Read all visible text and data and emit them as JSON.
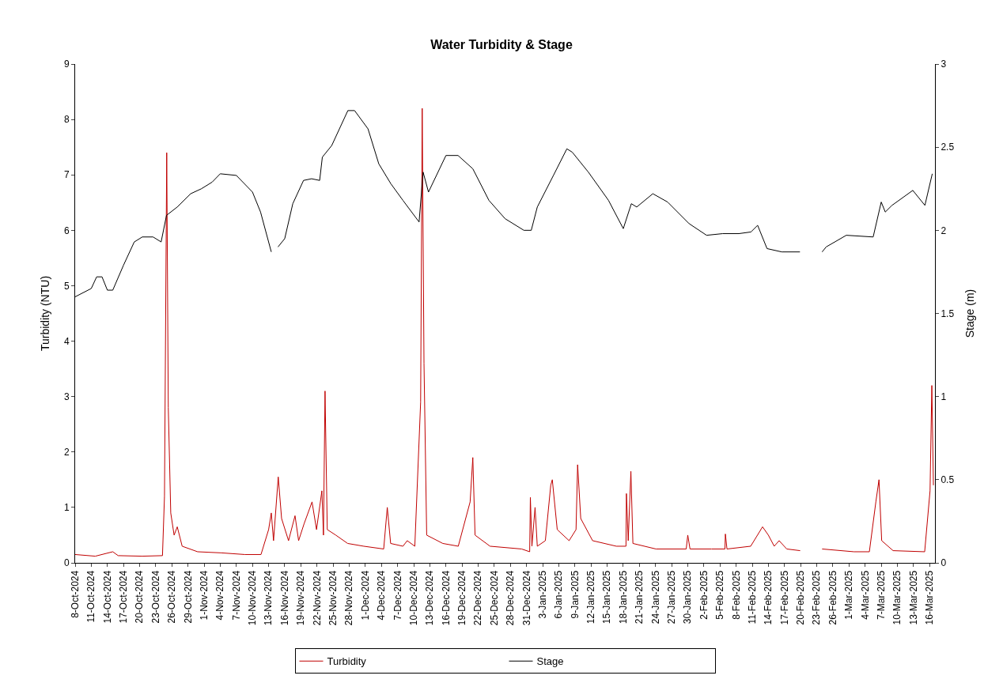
{
  "chart_data": {
    "type": "line",
    "title": "Water Turbidity & Stage",
    "ylabel": "Turbidity (NTU)",
    "y2label": "Stage (m)",
    "xlim": [
      "2024-10-08",
      "2025-03-17"
    ],
    "xticks": [
      {
        "value": "2024-10-08",
        "label": "8-Oct-2024"
      },
      {
        "value": "2024-10-11",
        "label": "11-Oct-2024"
      },
      {
        "value": "2024-10-14",
        "label": "14-Oct-2024"
      },
      {
        "value": "2024-10-17",
        "label": "17-Oct-2024"
      },
      {
        "value": "2024-10-20",
        "label": "20-Oct-2024"
      },
      {
        "value": "2024-10-23",
        "label": "23-Oct-2024"
      },
      {
        "value": "2024-10-26",
        "label": "26-Oct-2024"
      },
      {
        "value": "2024-10-29",
        "label": "29-Oct-2024"
      },
      {
        "value": "2024-11-01",
        "label": "1-Nov-2024"
      },
      {
        "value": "2024-11-04",
        "label": "4-Nov-2024"
      },
      {
        "value": "2024-11-07",
        "label": "7-Nov-2024"
      },
      {
        "value": "2024-11-10",
        "label": "10-Nov-2024"
      },
      {
        "value": "2024-11-13",
        "label": "13-Nov-2024"
      },
      {
        "value": "2024-11-16",
        "label": "16-Nov-2024"
      },
      {
        "value": "2024-11-19",
        "label": "19-Nov-2024"
      },
      {
        "value": "2024-11-22",
        "label": "22-Nov-2024"
      },
      {
        "value": "2024-11-25",
        "label": "25-Nov-2024"
      },
      {
        "value": "2024-11-28",
        "label": "28-Nov-2024"
      },
      {
        "value": "2024-12-01",
        "label": "1-Dec-2024"
      },
      {
        "value": "2024-12-04",
        "label": "4-Dec-2024"
      },
      {
        "value": "2024-12-07",
        "label": "7-Dec-2024"
      },
      {
        "value": "2024-12-10",
        "label": "10-Dec-2024"
      },
      {
        "value": "2024-12-13",
        "label": "13-Dec-2024"
      },
      {
        "value": "2024-12-16",
        "label": "16-Dec-2024"
      },
      {
        "value": "2024-12-19",
        "label": "19-Dec-2024"
      },
      {
        "value": "2024-12-22",
        "label": "22-Dec-2024"
      },
      {
        "value": "2024-12-25",
        "label": "25-Dec-2024"
      },
      {
        "value": "2024-12-28",
        "label": "28-Dec-2024"
      },
      {
        "value": "2024-12-31",
        "label": "31-Dec-2024"
      },
      {
        "value": "2025-01-03",
        "label": "3-Jan-2025"
      },
      {
        "value": "2025-01-06",
        "label": "6-Jan-2025"
      },
      {
        "value": "2025-01-09",
        "label": "9-Jan-2025"
      },
      {
        "value": "2025-01-12",
        "label": "12-Jan-2025"
      },
      {
        "value": "2025-01-15",
        "label": "15-Jan-2025"
      },
      {
        "value": "2025-01-18",
        "label": "18-Jan-2025"
      },
      {
        "value": "2025-01-21",
        "label": "21-Jan-2025"
      },
      {
        "value": "2025-01-24",
        "label": "24-Jan-2025"
      },
      {
        "value": "2025-01-27",
        "label": "27-Jan-2025"
      },
      {
        "value": "2025-01-30",
        "label": "30-Jan-2025"
      },
      {
        "value": "2025-02-02",
        "label": "2-Feb-2025"
      },
      {
        "value": "2025-02-05",
        "label": "5-Feb-2025"
      },
      {
        "value": "2025-02-08",
        "label": "8-Feb-2025"
      },
      {
        "value": "2025-02-11",
        "label": "11-Feb-2025"
      },
      {
        "value": "2025-02-14",
        "label": "14-Feb-2025"
      },
      {
        "value": "2025-02-17",
        "label": "17-Feb-2025"
      },
      {
        "value": "2025-02-20",
        "label": "20-Feb-2025"
      },
      {
        "value": "2025-02-23",
        "label": "23-Feb-2025"
      },
      {
        "value": "2025-02-26",
        "label": "26-Feb-2025"
      },
      {
        "value": "2025-03-01",
        "label": "1-Mar-2025"
      },
      {
        "value": "2025-03-04",
        "label": "4-Mar-2025"
      },
      {
        "value": "2025-03-07",
        "label": "7-Mar-2025"
      },
      {
        "value": "2025-03-10",
        "label": "10-Mar-2025"
      },
      {
        "value": "2025-03-13",
        "label": "13-Mar-2025"
      },
      {
        "value": "2025-03-16",
        "label": "16-Mar-2025"
      }
    ],
    "ylim": [
      0,
      9
    ],
    "yticks": [
      0,
      1,
      2,
      3,
      4,
      5,
      6,
      7,
      8,
      9
    ],
    "y2lim": [
      0,
      3
    ],
    "y2ticks": [
      0,
      0.5,
      1,
      1.5,
      2,
      2.5,
      3
    ],
    "legend": "bottom",
    "marker": "none",
    "line_style": "solid",
    "series": [
      {
        "name": "Turbidity",
        "color": "#c00000",
        "x": [
          "2024-10-08",
          "2024-10-11T18:00",
          "2024-10-15",
          "2024-10-16",
          "2024-10-20T12:00",
          "2024-10-24T06:00",
          "2024-10-24T15:00",
          "2024-10-25T01:00",
          "2024-10-25T08:00",
          "2024-10-25T19:00",
          "2024-10-26T10:00",
          "2024-10-27",
          "2024-10-27T22:00",
          "2024-10-30T19:00",
          "2024-11-04T05:00",
          "2024-11-08T14:00",
          "2024-11-11T14:00",
          "2024-11-13",
          "2024-11-13T12:00",
          "2024-11-13T22:00",
          "2024-11-14T19:00",
          "2024-11-15T10:00",
          "2024-11-16T17:00",
          "2024-11-17T22:00",
          "2024-11-18T14:00",
          "2024-11-19T14:00",
          "2024-11-21T02:00",
          "2024-11-21T22:00",
          "2024-11-22T22:00",
          "2024-11-23T05:00",
          "2024-11-23T12:00",
          "2024-11-23T22:00",
          "2024-11-25T12:00",
          "2024-11-27T17:00",
          "2024-11-30T17:00",
          "2024-12-04T10:00",
          "2024-12-05T02:00",
          "2024-12-05T17:00",
          "2024-12-08",
          "2024-12-08T19:00",
          "2024-12-10T05:00",
          "2024-12-11T07:00",
          "2024-12-11T14:00",
          "2024-12-11T22:00",
          "2024-12-12T10:00",
          "2024-12-15T10:00",
          "2024-12-18T07:00",
          "2024-12-20T12:00",
          "2024-12-21",
          "2024-12-21T10:00",
          "2024-12-24T05:00",
          "2024-12-30T02:00",
          "2024-12-31T14:00",
          "2024-12-31T17:00",
          "2025-01-01",
          "2025-01-01T14:00",
          "2025-01-02",
          "2025-01-03T12:00",
          "2025-01-04T12:00",
          "2025-01-04T19:00",
          "2025-01-05T17:00",
          "2025-01-07T22:00",
          "2025-01-09T05:00",
          "2025-01-09T12:00",
          "2025-01-10T02:00",
          "2025-01-12T07:00",
          "2025-01-16T17:00",
          "2025-01-18T12:00",
          "2025-01-18T14:00",
          "2025-01-18T22:00",
          "2025-01-19T10:00",
          "2025-01-19T19:00",
          "2025-01-24T02:00",
          "2025-01-29T17:00",
          "2025-01-30",
          "2025-01-30T10:00",
          "2025-02-03T10:00",
          "2025-02-05T22:00",
          "2025-02-06",
          "2025-02-06T07:00",
          "2025-02-10T17:00",
          "2025-02-12T22:00",
          "2025-02-14",
          "2025-02-15T02:00",
          "2025-02-16",
          "2025-02-17T10:00",
          "2025-02-19T22:00",
          "2025-02-22",
          "2025-02-24",
          "2025-03-01T22:00",
          "2025-03-04T19:00",
          "2025-03-06",
          "2025-03-06T14:00",
          "2025-03-07T02:00",
          "2025-03-09T05:00",
          "2025-03-15T02:00",
          "2025-03-16T02:00",
          "2025-03-16T10:00",
          "2025-03-16T17:00"
        ],
        "values": [
          0.15,
          0.12,
          0.2,
          0.13,
          0.12,
          0.13,
          1.2,
          7.4,
          2.8,
          0.9,
          0.5,
          0.65,
          0.3,
          0.2,
          0.18,
          0.15,
          0.15,
          0.6,
          0.9,
          0.4,
          1.55,
          0.8,
          0.4,
          0.85,
          0.4,
          0.7,
          1.1,
          0.6,
          1.3,
          0.5,
          3.1,
          0.6,
          0.5,
          0.35,
          0.3,
          0.25,
          1.0,
          0.35,
          0.3,
          0.4,
          0.3,
          2.9,
          8.2,
          3.6,
          0.5,
          0.35,
          0.3,
          1.1,
          1.9,
          0.5,
          0.3,
          0.25,
          0.2,
          1.18,
          0.3,
          1.0,
          0.3,
          0.4,
          1.4,
          1.5,
          0.6,
          0.4,
          0.6,
          1.77,
          0.8,
          0.4,
          0.3,
          0.3,
          1.25,
          0.4,
          1.65,
          0.35,
          0.25,
          0.25,
          0.5,
          0.25,
          0.25,
          0.25,
          0.52,
          0.25,
          0.3,
          0.65,
          0.5,
          0.3,
          0.4,
          0.25,
          0.22,
          null,
          0.25,
          0.2,
          0.2,
          1.1,
          1.5,
          0.4,
          0.22,
          0.2,
          1.3,
          3.2,
          1.4
        ]
      },
      {
        "name": "Stage",
        "color": "#000000",
        "axis": "y2",
        "x": [
          "2024-10-08",
          "2024-10-11",
          "2024-10-12",
          "2024-10-13",
          "2024-10-14",
          "2024-10-15",
          "2024-10-17",
          "2024-10-19",
          "2024-10-20T12:00",
          "2024-10-22T12:00",
          "2024-10-24",
          "2024-10-25",
          "2024-10-27",
          "2024-10-29T12:00",
          "2024-10-31T12:00",
          "2024-11-02T12:00",
          "2024-11-04",
          "2024-11-07",
          "2024-11-10",
          "2024-11-11T12:00",
          "2024-11-13T12:00",
          "2024-11-14",
          "2024-11-14T18:00",
          "2024-11-16",
          "2024-11-17T12:00",
          "2024-11-19T12:00",
          "2024-11-21",
          "2024-11-22T12:00",
          "2024-11-23",
          "2024-11-24T18:00",
          "2024-11-27T18:00",
          "2024-11-29",
          "2024-12-01T12:00",
          "2024-12-03T12:00",
          "2024-12-05T18:00",
          "2024-12-08",
          "2024-12-11",
          "2024-12-11T18:00",
          "2024-12-12T18:00",
          "2024-12-16",
          "2024-12-18T06:00",
          "2024-12-21",
          "2024-12-24",
          "2024-12-27",
          "2024-12-30T12:00",
          "2024-12-31T21:00",
          "2025-01-02",
          "2025-01-05",
          "2025-01-07T12:00",
          "2025-01-08T12:00",
          "2025-01-11T12:00",
          "2025-01-15T06:00",
          "2025-01-18",
          "2025-01-19T12:00",
          "2025-01-20T12:00",
          "2025-01-23T12:00",
          "2025-01-26T06:00",
          "2025-01-30T06:00",
          "2025-02-02T12:00",
          "2025-02-05T12:00",
          "2025-02-08T12:00",
          "2025-02-10T18:00",
          "2025-02-12",
          "2025-02-13T18:00",
          "2025-02-16T12:00",
          "2025-02-19T21:00",
          "2025-02-22",
          "2025-02-24",
          "2025-02-24T18:00",
          "2025-02-28T12:00",
          "2025-03-05T12:00",
          "2025-03-07",
          "2025-03-07T18:00",
          "2025-03-09",
          "2025-03-12T21:00",
          "2025-03-15T03:00",
          "2025-03-16T12:00"
        ],
        "values": [
          1.6,
          1.65,
          1.72,
          1.72,
          1.64,
          1.64,
          1.79,
          1.93,
          1.96,
          1.96,
          1.93,
          2.09,
          2.14,
          2.22,
          2.25,
          2.29,
          2.34,
          2.33,
          2.23,
          2.11,
          1.87,
          null,
          1.9,
          1.95,
          2.16,
          2.3,
          2.31,
          2.3,
          2.44,
          2.51,
          2.72,
          2.72,
          2.61,
          2.4,
          2.28,
          2.18,
          2.05,
          2.35,
          2.23,
          2.45,
          2.45,
          2.37,
          2.18,
          2.07,
          2.0,
          2.0,
          2.14,
          2.33,
          2.49,
          2.47,
          2.35,
          2.18,
          2.01,
          2.16,
          2.14,
          2.22,
          2.17,
          2.04,
          1.97,
          1.98,
          1.98,
          1.99,
          2.03,
          1.89,
          1.87,
          1.87,
          null,
          1.87,
          1.9,
          1.97,
          1.96,
          2.17,
          2.11,
          2.15,
          2.24,
          2.15,
          2.34
        ]
      }
    ]
  }
}
